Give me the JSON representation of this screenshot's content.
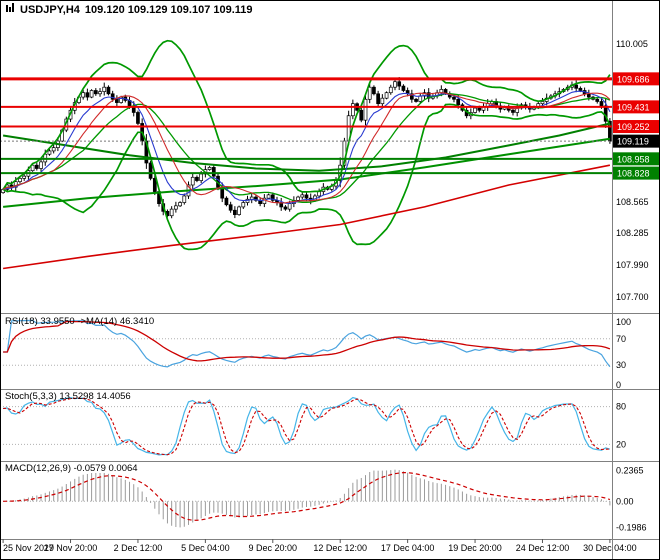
{
  "header": {
    "icon": "chart-window-icon",
    "symbol_period": "USDJPY,H4",
    "quotes": "109.120 109.129 109.107 109.119"
  },
  "panes": {
    "rsi": {
      "label": "RSI(18) 33.9550  ->MA(14) 46.3410"
    },
    "stoch": {
      "label": "Stoch(5,3,3) 13.5298 14.4056"
    },
    "macd": {
      "label": "MACD(12,26,9) -0.0579 0.0064"
    }
  },
  "chart_data": {
    "type": "candlestick",
    "symbol": "USDJPY",
    "timeframe": "H4",
    "x_labels": [
      {
        "label": "25 Nov 2019",
        "bar": 0
      },
      {
        "label": "27 Nov 20:00",
        "bar": 16
      },
      {
        "label": "2 Dec 12:00",
        "bar": 32
      },
      {
        "label": "5 Dec 04:00",
        "bar": 48
      },
      {
        "label": "9 Dec 20:00",
        "bar": 64
      },
      {
        "label": "12 Dec 12:00",
        "bar": 80
      },
      {
        "label": "17 Dec 04:00",
        "bar": 96
      },
      {
        "label": "19 Dec 20:00",
        "bar": 112
      },
      {
        "label": "24 Dec 12:00",
        "bar": 128
      },
      {
        "label": "30 Dec 04:00",
        "bar": 144
      }
    ],
    "y_axis": {
      "price_max": 110.24,
      "price_min": 107.6,
      "plain_ticks": [
        {
          "label": "110.005",
          "value": 110.005
        },
        {
          "label": "108.565",
          "value": 108.565
        },
        {
          "label": "108.285",
          "value": 108.285
        },
        {
          "label": "107.990",
          "value": 107.99
        },
        {
          "label": "107.700",
          "value": 107.7
        }
      ]
    },
    "candles": {
      "first_open": 108.65,
      "closes": [
        108.68,
        108.72,
        108.7,
        108.75,
        108.78,
        108.8,
        108.85,
        108.9,
        108.87,
        108.93,
        109.0,
        109.03,
        109.06,
        109.12,
        109.22,
        109.32,
        109.4,
        109.47,
        109.52,
        109.56,
        109.52,
        109.58,
        109.55,
        109.57,
        109.61,
        109.55,
        109.5,
        109.47,
        109.52,
        109.49,
        109.44,
        109.38,
        109.28,
        109.12,
        108.92,
        108.78,
        108.66,
        108.55,
        108.48,
        108.44,
        108.5,
        108.53,
        108.56,
        108.62,
        108.72,
        108.79,
        108.76,
        108.82,
        108.86,
        108.88,
        108.8,
        108.7,
        108.6,
        108.54,
        108.49,
        108.45,
        108.52,
        108.56,
        108.59,
        108.61,
        108.58,
        108.55,
        108.6,
        108.63,
        108.58,
        108.56,
        108.52,
        108.5,
        108.55,
        108.58,
        108.61,
        108.63,
        108.6,
        108.58,
        108.62,
        108.66,
        108.7,
        108.68,
        108.71,
        108.76,
        108.9,
        109.12,
        109.35,
        109.46,
        109.4,
        109.31,
        109.5,
        109.61,
        109.55,
        109.46,
        109.51,
        109.56,
        109.61,
        109.66,
        109.62,
        109.58,
        109.55,
        109.5,
        109.48,
        109.53,
        109.56,
        109.51,
        109.53,
        109.56,
        109.59,
        109.55,
        109.52,
        109.5,
        109.45,
        109.4,
        109.35,
        109.38,
        109.42,
        109.4,
        109.43,
        109.46,
        109.48,
        109.44,
        109.41,
        109.43,
        109.4,
        109.38,
        109.42,
        109.45,
        109.43,
        109.41,
        109.43,
        109.46,
        109.48,
        109.51,
        109.53,
        109.55,
        109.57,
        109.59,
        109.61,
        109.63,
        109.6,
        109.58,
        109.55,
        109.52,
        109.5,
        109.48,
        109.44,
        109.3,
        109.119
      ]
    },
    "levels": [
      {
        "value": 109.686,
        "label": "109.686",
        "color": "#ea0000",
        "badge": "#ea0000",
        "width": 3
      },
      {
        "value": 109.431,
        "label": "109.431",
        "color": "#ea0000",
        "badge": "#ea0000",
        "width": 2
      },
      {
        "value": 109.252,
        "label": "109.252",
        "color": "#ea0000",
        "badge": "#ea0000",
        "width": 2
      },
      {
        "value": 109.119,
        "label": "109.119",
        "color": "#777777",
        "badge": "#000000",
        "width": 1,
        "style": "dotted",
        "role": "current-price"
      },
      {
        "value": 108.958,
        "label": "108.958",
        "color": "#008000",
        "badge": "#008000",
        "width": 2
      },
      {
        "value": 108.828,
        "label": "108.828",
        "color": "#008000",
        "badge": "#008000",
        "width": 2
      }
    ],
    "overlay_lines": [
      {
        "name": "ma-long-green-upper",
        "color": "#008000",
        "width": 2,
        "points": [
          [
            0,
            109.17
          ],
          [
            15,
            109.08
          ],
          [
            30,
            108.99
          ],
          [
            45,
            108.92
          ],
          [
            60,
            108.87
          ],
          [
            75,
            108.85
          ],
          [
            90,
            108.89
          ],
          [
            105,
            108.97
          ],
          [
            120,
            109.08
          ],
          [
            132,
            109.17
          ],
          [
            144,
            109.28
          ]
        ]
      },
      {
        "name": "ma-long-green-lower",
        "color": "#009000",
        "width": 2,
        "points": [
          [
            0,
            108.52
          ],
          [
            20,
            108.6
          ],
          [
            40,
            108.66
          ],
          [
            60,
            108.71
          ],
          [
            80,
            108.77
          ],
          [
            100,
            108.88
          ],
          [
            120,
            109.0
          ],
          [
            144,
            109.14
          ]
        ]
      },
      {
        "name": "ma-long-red",
        "color": "#d40000",
        "width": 1.6,
        "points": [
          [
            0,
            107.96
          ],
          [
            20,
            108.07
          ],
          [
            40,
            108.17
          ],
          [
            60,
            108.26
          ],
          [
            80,
            108.36
          ],
          [
            100,
            108.52
          ],
          [
            120,
            108.72
          ],
          [
            144,
            108.9
          ]
        ]
      }
    ],
    "indicators": {
      "bollinger": {
        "period": 20,
        "deviation": 2,
        "color": "#009900"
      },
      "ma_fast": {
        "type": "ema",
        "period": 8,
        "color": "#2a3bd0"
      },
      "ma_slow": {
        "type": "sma",
        "period": 13,
        "color": "#d02a2a"
      },
      "rsi": {
        "period": 18,
        "value": 33.955,
        "ma_period": 14,
        "ma_value": 46.341,
        "levels": [
          70,
          30
        ],
        "line_color": "#4aa3df",
        "ma_color": "#cc0000",
        "axis": [
          {
            "label": "100",
            "value": 100
          },
          {
            "label": "70",
            "value": 70
          },
          {
            "label": "30",
            "value": 30
          },
          {
            "label": "0",
            "value": 0
          }
        ]
      },
      "stoch": {
        "k": 5,
        "d": 3,
        "slowing": 3,
        "value": 13.5298,
        "signal_value": 14.4056,
        "levels": [
          80,
          20
        ],
        "k_color": "#45b5e8",
        "d_color": "#cc0000",
        "axis": [
          {
            "label": "80",
            "value": 80
          },
          {
            "label": "20",
            "value": 20
          }
        ]
      },
      "macd": {
        "fast": 12,
        "slow": 26,
        "signal": 9,
        "value": -0.0579,
        "signal_value": 0.0064,
        "hist_color": "#9a9a9a",
        "signal_color": "#cc0000",
        "axis": [
          {
            "label": "0.2365",
            "value": 0.2365
          },
          {
            "label": "0.00",
            "value": 0
          },
          {
            "label": "-0.1986",
            "value": -0.1986
          }
        ]
      }
    }
  }
}
